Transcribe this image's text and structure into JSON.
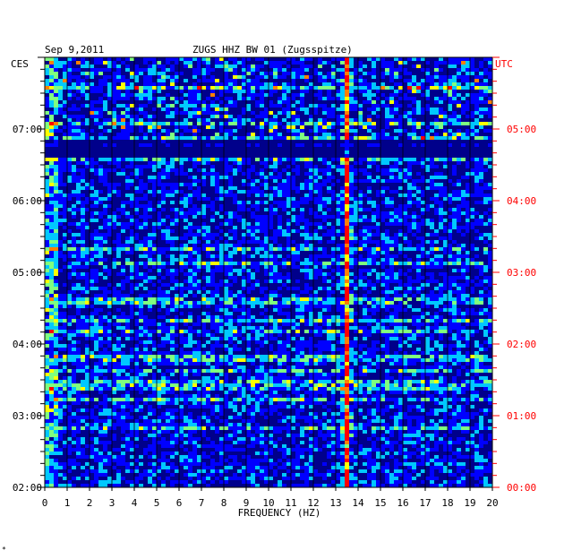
{
  "chart_data": {
    "type": "heatmap",
    "header": {
      "date": "Sep 9,2011",
      "title": "ZUGS HHZ BW 01 (Zugsspitze)"
    },
    "left_axis_title": "CES",
    "right_axis_title": "UTC",
    "xlabel": "FREQUENCY (HZ)",
    "x_ticks": [
      "0",
      "1",
      "2",
      "3",
      "4",
      "5",
      "6",
      "7",
      "8",
      "9",
      "10",
      "11",
      "12",
      "13",
      "14",
      "15",
      "16",
      "17",
      "18",
      "19",
      "20"
    ],
    "xlim": [
      0,
      20
    ],
    "left_time_labels": [
      "07:00",
      "06:00",
      "05:00",
      "04:00",
      "03:00",
      "02:00"
    ],
    "right_time_labels": [
      "05:00",
      "04:00",
      "03:00",
      "02:00",
      "01:00",
      "00:00"
    ],
    "time_range_local": [
      "02:00",
      "07:55"
    ],
    "colormap": [
      "#00007f",
      "#0000ff",
      "#00c8ff",
      "#7fff7f",
      "#ffff00",
      "#ff7f00",
      "#ff0000"
    ],
    "dominant_frequency_hz": 13.5,
    "colors": {
      "axis_left": "#000000",
      "axis_right": "#ff0000",
      "background": "#00008b"
    },
    "footer_mark": "*"
  }
}
